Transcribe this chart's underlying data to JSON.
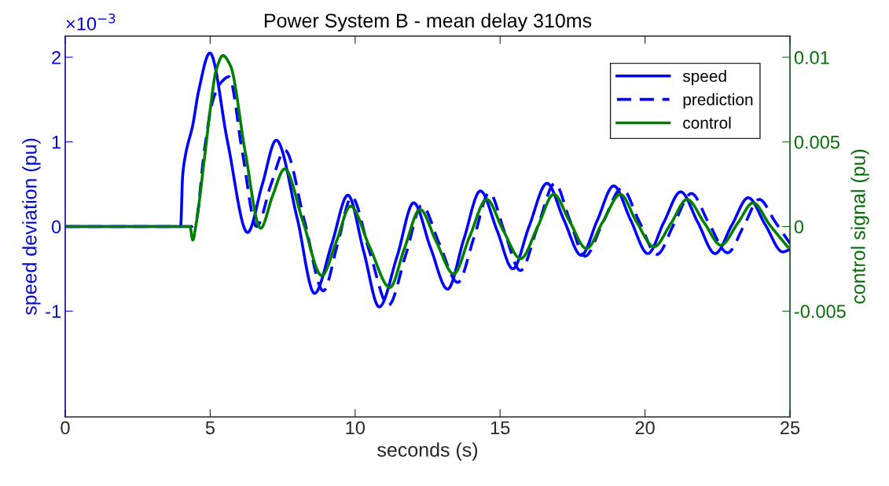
{
  "chart_data": {
    "type": "line",
    "title": "Power System B - mean delay 310ms",
    "xlabel": "seconds (s)",
    "ylabel": "speed deviation (pu)",
    "y2label": "control signal (pu)",
    "annotations": [
      "×10$^{−3}$"
    ],
    "xlim": [
      0,
      25
    ],
    "xticks": [
      0,
      5,
      10,
      15,
      20,
      25
    ],
    "ylim": [
      -2.25,
      2.25
    ],
    "yticks": [
      -1,
      0,
      1,
      2
    ],
    "y2lim": [
      -0.01125,
      0.01125
    ],
    "y2ticks": [
      -0.005,
      0,
      0.005,
      0.01
    ],
    "legend": "top right",
    "grid": false,
    "marker": "none",
    "series": [
      {
        "name": "speed",
        "color": "#0000ff",
        "line_style": "solid",
        "x": [
          0,
          3.98,
          4.05,
          4.15,
          4.4,
          4.6,
          4.99,
          5.6,
          6.29,
          6.8,
          7.28,
          8.0,
          8.6,
          9.2,
          9.75,
          10.3,
          10.83,
          11.45,
          12.02,
          12.6,
          13.19,
          13.75,
          14.32,
          14.9,
          15.44,
          16.0,
          16.62,
          17.2,
          17.8,
          18.35,
          18.92,
          19.5,
          20.1,
          20.65,
          21.23,
          21.82,
          22.42,
          23.0,
          23.56,
          24.15,
          24.75,
          25
        ],
        "values": [
          0,
          0,
          0.6,
          0.85,
          1.2,
          1.6,
          2.05,
          1.0,
          -0.07,
          0.5,
          1.02,
          0.1,
          -0.79,
          -0.2,
          0.37,
          -0.3,
          -0.95,
          -0.35,
          0.28,
          -0.25,
          -0.74,
          -0.15,
          0.42,
          -0.05,
          -0.5,
          0.0,
          0.51,
          0.08,
          -0.34,
          0.07,
          0.48,
          0.08,
          -0.32,
          0.05,
          0.41,
          0.05,
          -0.32,
          0.02,
          0.34,
          0.02,
          -0.3,
          -0.27
        ]
      },
      {
        "name": "prediction",
        "color": "#0000ff",
        "line_style": "dashed",
        "x": [
          0,
          4.35,
          4.5,
          4.8,
          5.1,
          5.37,
          5.65,
          6.1,
          6.6,
          7.1,
          7.58,
          8.25,
          8.9,
          9.4,
          9.88,
          10.5,
          11.15,
          11.75,
          12.3,
          12.9,
          13.54,
          14.1,
          14.63,
          15.15,
          15.7,
          16.3,
          16.89,
          17.4,
          17.93,
          18.55,
          19.2,
          19.8,
          20.41,
          21.0,
          21.6,
          22.2,
          22.85,
          23.4,
          23.94,
          24.5,
          25
        ],
        "values": [
          0,
          0,
          0.05,
          0.9,
          1.5,
          1.7,
          1.77,
          0.9,
          0.0,
          0.5,
          0.9,
          0.07,
          -0.76,
          -0.2,
          0.35,
          -0.3,
          -0.93,
          -0.33,
          0.25,
          -0.2,
          -0.66,
          -0.13,
          0.4,
          -0.06,
          -0.52,
          0.0,
          0.51,
          0.08,
          -0.35,
          0.05,
          0.45,
          0.06,
          -0.33,
          0.03,
          0.39,
          0.04,
          -0.31,
          0.0,
          0.32,
          0.05,
          -0.2
        ]
      },
      {
        "name": "control",
        "color": "#008000",
        "line_style": "solid",
        "axis": "y2",
        "x": [
          0,
          4.3,
          4.4,
          4.5,
          4.8,
          5.0,
          5.2,
          5.44,
          5.7,
          6.2,
          6.74,
          7.15,
          7.57,
          8.2,
          8.85,
          9.35,
          9.84,
          10.5,
          11.2,
          11.7,
          12.24,
          12.8,
          13.4,
          13.95,
          14.54,
          15.1,
          15.71,
          16.3,
          16.85,
          17.4,
          17.98,
          18.55,
          19.15,
          19.7,
          20.31,
          20.9,
          21.45,
          22.05,
          22.62,
          23.2,
          23.73,
          24.3,
          24.92
        ],
        "values": [
          0,
          0,
          -0.0008,
          0.0,
          0.004,
          0.0069,
          0.0092,
          0.0101,
          0.0095,
          0.0045,
          -0.0001,
          0.0018,
          0.0034,
          0.0003,
          -0.0029,
          -0.0009,
          0.0012,
          -0.0012,
          -0.0036,
          -0.0013,
          0.001,
          -0.0009,
          -0.0028,
          -0.0006,
          0.0016,
          -0.0002,
          -0.0019,
          0.0,
          0.0019,
          0.0003,
          -0.0013,
          0.0003,
          0.0019,
          0.0003,
          -0.0012,
          0.0002,
          0.0016,
          0.0002,
          -0.0011,
          0.0002,
          0.0014,
          0.0001,
          -0.0012
        ]
      }
    ]
  }
}
